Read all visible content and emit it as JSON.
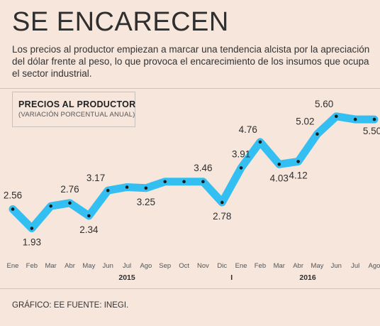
{
  "title": "SE ENCARECEN",
  "subtitle": "Los precios al productor empiezan a marcar una tendencia alcista por la apreciación del dólar frente al peso, lo que provoca el encarecimiento de los insumos que ocupa el sector industrial.",
  "footer": "GRÁFICO: EE  FUENTE: INEGI.",
  "colors": {
    "line": "#34bff2",
    "background": "#f6e6dc",
    "dot": "#1a1a1a"
  },
  "chart_data": {
    "type": "line",
    "title": "PRECIOS AL PRODUCTOR",
    "subtitle": "(VARIACIÓN PORCENTUAL ANUAL)",
    "categories": [
      "Ene",
      "Feb",
      "Mar",
      "Abr",
      "May",
      "Jun",
      "Jul",
      "Ago",
      "Sep",
      "Oct",
      "Nov",
      "Dic",
      "Ene",
      "Feb",
      "Mar",
      "Abr",
      "May",
      "Jun",
      "Jul",
      "Ago"
    ],
    "year_labels": [
      {
        "label": "2015",
        "category_index": 6
      },
      {
        "label": "I",
        "category_index": 11.5
      },
      {
        "label": "2016",
        "category_index": 15.5
      }
    ],
    "series": [
      {
        "values": [
          2.56,
          1.93,
          2.66,
          2.76,
          2.34,
          3.17,
          3.28,
          3.25,
          3.46,
          3.46,
          3.46,
          2.78,
          3.91,
          4.76,
          4.03,
          4.12,
          5.02,
          5.6,
          5.5,
          5.5
        ]
      }
    ],
    "data_labels": [
      {
        "index": 0,
        "text": "2.56",
        "pos": "above"
      },
      {
        "index": 1,
        "text": "1.93",
        "pos": "below"
      },
      {
        "index": 3,
        "text": "2.76",
        "pos": "above"
      },
      {
        "index": 4,
        "text": "2.34",
        "pos": "below"
      },
      {
        "index": 5,
        "text": "3.17",
        "pos": "above-left"
      },
      {
        "index": 7,
        "text": "3.25",
        "pos": "below"
      },
      {
        "index": 10,
        "text": "3.46",
        "pos": "above"
      },
      {
        "index": 11,
        "text": "2.78",
        "pos": "below"
      },
      {
        "index": 12,
        "text": "3.91",
        "pos": "above"
      },
      {
        "index": 13,
        "text": "4.76",
        "pos": "above-left"
      },
      {
        "index": 14,
        "text": "4.03",
        "pos": "below"
      },
      {
        "index": 15,
        "text": "4.12",
        "pos": "below"
      },
      {
        "index": 16,
        "text": "5.02",
        "pos": "above-left"
      },
      {
        "index": 17,
        "text": "5.60",
        "pos": "above-left"
      },
      {
        "index": 19,
        "text": "5.50",
        "pos": "below-left"
      }
    ],
    "ylim": [
      1.5,
      6.2
    ],
    "grid": false,
    "legend": "none"
  }
}
